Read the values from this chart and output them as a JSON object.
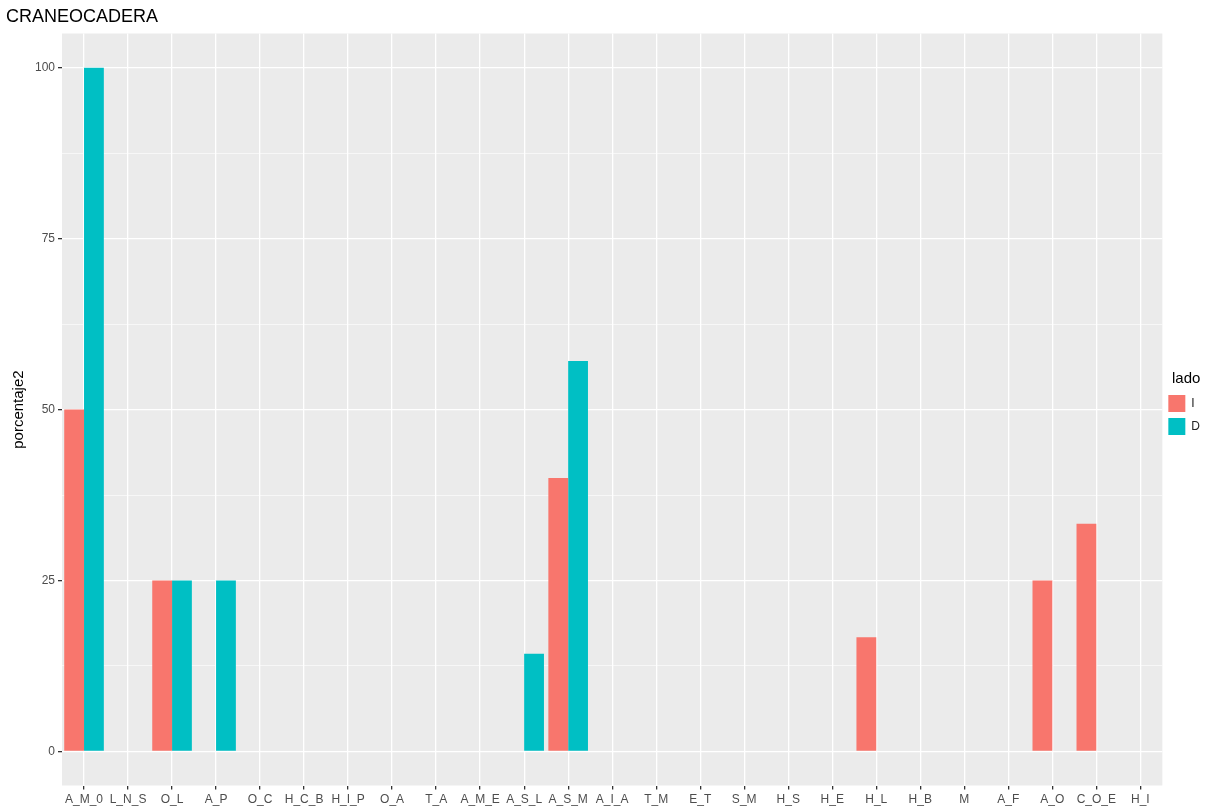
{
  "chart_data": {
    "type": "bar",
    "title": "CRANEOCADERA",
    "ylabel": "porcentaje2",
    "legend_title": "lado",
    "categories": [
      "A_M_0",
      "L_N_S",
      "O_L",
      "A_P",
      "O_C",
      "H_C_B",
      "H_I_P",
      "O_A",
      "T_A",
      "A_M_E",
      "A_S_L",
      "A_S_M",
      "A_I_A",
      "T_M",
      "E_T",
      "S_M",
      "H_S",
      "H_E",
      "H_L",
      "H_B",
      "M",
      "A_F",
      "A_O",
      "C_O_E",
      "H_I"
    ],
    "series": [
      {
        "name": "I",
        "color": "#f8766d",
        "values": [
          50,
          null,
          25,
          null,
          null,
          null,
          null,
          null,
          null,
          null,
          null,
          40,
          null,
          null,
          null,
          null,
          null,
          null,
          16.7,
          null,
          null,
          null,
          25,
          33.3,
          null
        ]
      },
      {
        "name": "D",
        "color": "#00bfc4",
        "values": [
          100,
          null,
          25,
          25,
          null,
          null,
          null,
          null,
          null,
          null,
          14.3,
          57.1,
          null,
          null,
          null,
          null,
          null,
          null,
          null,
          null,
          null,
          null,
          null,
          null,
          null
        ]
      }
    ],
    "ylim": [
      -5,
      105
    ],
    "yticks": [
      0,
      {
        "value": 12.5,
        "label": null
      },
      25,
      {
        "value": 37.5,
        "label": null
      },
      50,
      {
        "value": 62.5,
        "label": null
      },
      75,
      {
        "value": 87.5,
        "label": null
      },
      100
    ],
    "grid": true,
    "legend": "right"
  }
}
